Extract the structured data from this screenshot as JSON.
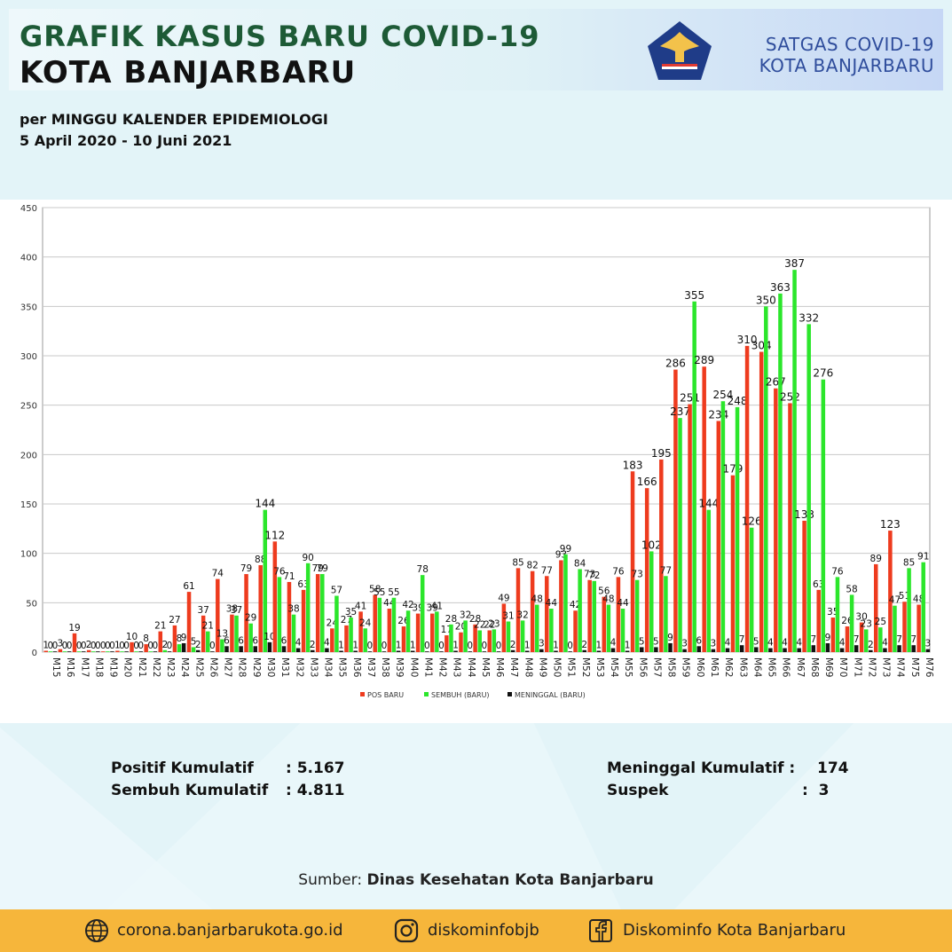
{
  "header": {
    "title_line1": "GRAFIK KASUS BARU COVID-19",
    "title_line2": "KOTA BANJARBARU",
    "subtitle_line1": "per MINGGU KALENDER EPIDEMIOLOGI",
    "subtitle_line2": "5 April 2020 - 10 Juni 2021",
    "org_line1": "SATGAS COVID-19",
    "org_line2": "KOTA BANJARBARU"
  },
  "colors": {
    "pos": "#ee3b1e",
    "sembuh": "#2be62b",
    "meninggal": "#111111",
    "title_green": "#1d5a36",
    "org_blue": "#2f4d9c",
    "footer": "#f6b63b"
  },
  "chart_data": {
    "type": "bar",
    "categories": [
      "M15",
      "M16",
      "M17",
      "M18",
      "M19",
      "M20",
      "M21",
      "M22",
      "M23",
      "M24",
      "M25",
      "M26",
      "M27",
      "M28",
      "M29",
      "M30",
      "M31",
      "M32",
      "M33",
      "M34",
      "M35",
      "M36",
      "M37",
      "M38",
      "M39",
      "M40",
      "M41",
      "M42",
      "M43",
      "M44",
      "M45",
      "M46",
      "M47",
      "M48",
      "M49",
      "M50",
      "M51",
      "M52",
      "M53",
      "M54",
      "M55",
      "M56",
      "M57",
      "M58",
      "M59",
      "M60",
      "M61",
      "M62",
      "M63",
      "M64",
      "M65",
      "M66",
      "M67",
      "M68",
      "M69",
      "M70",
      "M71",
      "M72",
      "M73",
      "M74",
      "M75",
      "M76"
    ],
    "series": [
      {
        "name": "POS BARU",
        "values": [
          1,
          3,
          19,
          2,
          0,
          1,
          10,
          8,
          21,
          27,
          61,
          37,
          74,
          38,
          79,
          88,
          112,
          71,
          63,
          79,
          24,
          27,
          41,
          58,
          44,
          26,
          39,
          39,
          17,
          20,
          28,
          22,
          49,
          85,
          82,
          77,
          93,
          42,
          73,
          56,
          76,
          183,
          166,
          195,
          286,
          251,
          289,
          234,
          179,
          310,
          304,
          267,
          252,
          133,
          63,
          35,
          26,
          30,
          89,
          123,
          51,
          48
        ]
      },
      {
        "name": "SEMBUH (BARU)",
        "values": [
          0,
          0,
          0,
          0,
          0,
          0,
          0,
          0,
          2,
          8,
          5,
          21,
          13,
          37,
          29,
          144,
          76,
          38,
          90,
          79,
          57,
          35,
          24,
          55,
          55,
          42,
          78,
          41,
          28,
          32,
          22,
          23,
          31,
          32,
          48,
          44,
          99,
          84,
          72,
          48,
          44,
          73,
          102,
          77,
          237,
          355,
          144,
          254,
          248,
          126,
          350,
          363,
          387,
          332,
          276,
          76,
          58,
          23,
          25,
          47,
          85,
          91
        ]
      },
      {
        "name": "MENINGGAL (BARU)",
        "values": [
          0,
          0,
          0,
          0,
          0,
          0,
          0,
          0,
          0,
          9,
          2,
          0,
          6,
          6,
          6,
          10,
          6,
          4,
          2,
          4,
          1,
          1,
          0,
          0,
          1,
          1,
          0,
          0,
          1,
          0,
          0,
          0,
          2,
          1,
          3,
          1,
          0,
          2,
          1,
          4,
          1,
          5,
          5,
          9,
          3,
          6,
          3,
          4,
          7,
          5,
          4,
          4,
          4,
          7,
          9,
          4,
          7,
          2,
          4,
          7,
          7,
          3
        ]
      }
    ],
    "ylim": [
      0,
      450
    ],
    "yticks": [
      0,
      50,
      100,
      150,
      200,
      250,
      300,
      350,
      400,
      450
    ],
    "legend": "bottom"
  },
  "stats": {
    "positif_label": "Positif Kumulatif",
    "positif_value": ": 5.167",
    "sembuh_label": "Sembuh Kumulatif",
    "sembuh_value": ": 4.811",
    "meninggal_label": "Meninggal Kumulatif :",
    "meninggal_value": "174",
    "suspek_label": "Suspek",
    "suspek_value": ":  3"
  },
  "source": {
    "label": "Sumber:",
    "value": "Dinas Kesehatan Kota Banjarbaru"
  },
  "footer": {
    "website": "corona.banjarbarukota.go.id",
    "instagram": "diskominfobjb",
    "facebook": "Diskominfo Kota Banjarbaru",
    "icons": [
      "globe-icon",
      "instagram-icon",
      "facebook-icon"
    ]
  }
}
